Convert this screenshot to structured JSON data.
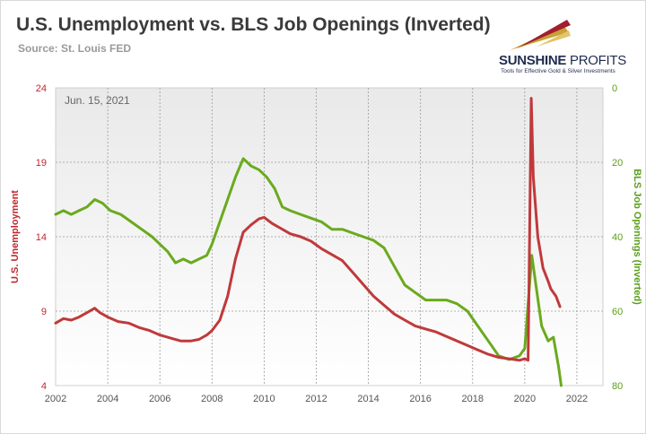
{
  "title": "U.S. Unemployment vs. BLS Job Openings (Inverted)",
  "source": "Source: St. Louis FED",
  "logo": {
    "brand_bold": "SUNSHINE",
    "brand_light": " PROFITS",
    "tagline": "Tools for Effective Gold & Silver Investments"
  },
  "colors": {
    "unemployment": "#c0393b",
    "job_openings": "#6aaa1e",
    "left_axis": "#c0272d",
    "right_axis": "#5a9e1a"
  },
  "chart_data": {
    "type": "line",
    "title": "U.S. Unemployment vs. BLS Job Openings (Inverted)",
    "annotation": "Jun. 15, 2021",
    "xlabel": "",
    "ylabel_left": "U.S. Unemployment",
    "ylabel_right": "BLS Job Openings (Inverted)",
    "xlim": [
      2002,
      2023
    ],
    "x_ticks": [
      "2002",
      "2004",
      "2006",
      "2008",
      "2010",
      "2012",
      "2014",
      "2016",
      "2018",
      "2020",
      "2022"
    ],
    "ylim_left": [
      4,
      24
    ],
    "y_ticks_left": [
      "4",
      "9",
      "14",
      "19",
      "24"
    ],
    "ylim_right": [
      80,
      0
    ],
    "y_ticks_right": [
      "0",
      "20",
      "40",
      "60",
      "80"
    ],
    "grid": true,
    "series": [
      {
        "name": "U.S. Unemployment",
        "axis": "left",
        "x": [
          2002.0,
          2002.3,
          2002.6,
          2002.9,
          2003.2,
          2003.5,
          2003.7,
          2004.0,
          2004.4,
          2004.8,
          2005.2,
          2005.6,
          2006.0,
          2006.4,
          2006.8,
          2007.2,
          2007.5,
          2007.8,
          2008.0,
          2008.3,
          2008.6,
          2008.9,
          2009.2,
          2009.5,
          2009.8,
          2010.0,
          2010.3,
          2010.6,
          2011.0,
          2011.4,
          2011.8,
          2012.2,
          2012.6,
          2013.0,
          2013.4,
          2013.8,
          2014.2,
          2014.6,
          2015.0,
          2015.4,
          2015.8,
          2016.2,
          2016.6,
          2017.0,
          2017.4,
          2017.8,
          2018.2,
          2018.6,
          2019.0,
          2019.4,
          2019.8,
          2020.0,
          2020.13,
          2020.25,
          2020.33,
          2020.5,
          2020.7,
          2020.9,
          2021.0,
          2021.2,
          2021.35
        ],
        "values": [
          8.2,
          8.5,
          8.4,
          8.6,
          8.9,
          9.2,
          8.9,
          8.6,
          8.3,
          8.2,
          7.9,
          7.7,
          7.4,
          7.2,
          7.0,
          7.0,
          7.1,
          7.4,
          7.7,
          8.4,
          10.0,
          12.5,
          14.3,
          14.8,
          15.2,
          15.3,
          14.9,
          14.6,
          14.2,
          14.0,
          13.7,
          13.2,
          12.8,
          12.4,
          11.6,
          10.8,
          10.0,
          9.4,
          8.8,
          8.4,
          8.0,
          7.8,
          7.6,
          7.3,
          7.0,
          6.7,
          6.4,
          6.1,
          5.9,
          5.8,
          5.7,
          5.8,
          5.7,
          23.3,
          18.0,
          14.0,
          11.9,
          11.0,
          10.5,
          10.0,
          9.3
        ]
      },
      {
        "name": "BLS Job Openings (Inverted)",
        "axis": "right",
        "x": [
          2002.0,
          2002.3,
          2002.6,
          2002.9,
          2003.2,
          2003.5,
          2003.8,
          2004.1,
          2004.5,
          2004.9,
          2005.3,
          2005.7,
          2006.0,
          2006.3,
          2006.6,
          2006.9,
          2007.2,
          2007.5,
          2007.8,
          2008.0,
          2008.3,
          2008.6,
          2008.9,
          2009.2,
          2009.5,
          2009.8,
          2010.1,
          2010.4,
          2010.7,
          2011.0,
          2011.4,
          2011.8,
          2012.2,
          2012.6,
          2013.0,
          2013.4,
          2013.8,
          2014.2,
          2014.6,
          2015.0,
          2015.4,
          2015.8,
          2016.2,
          2016.6,
          2017.0,
          2017.4,
          2017.8,
          2018.2,
          2018.6,
          2019.0,
          2019.4,
          2019.8,
          2020.0,
          2020.13,
          2020.27,
          2020.45,
          2020.65,
          2020.9,
          2021.1,
          2021.3,
          2021.4
        ],
        "values": [
          34,
          33,
          34,
          33,
          32,
          30,
          31,
          33,
          34,
          36,
          38,
          40,
          42,
          44,
          47,
          46,
          47,
          46,
          45,
          42,
          36,
          30,
          24,
          19,
          21,
          22,
          24,
          27,
          32,
          33,
          34,
          35,
          36,
          38,
          38,
          39,
          40,
          41,
          43,
          48,
          53,
          55,
          57,
          57,
          57,
          58,
          60,
          64,
          68,
          72,
          73,
          72,
          70,
          58,
          45,
          54,
          64,
          68,
          67,
          75,
          81
        ]
      }
    ]
  }
}
